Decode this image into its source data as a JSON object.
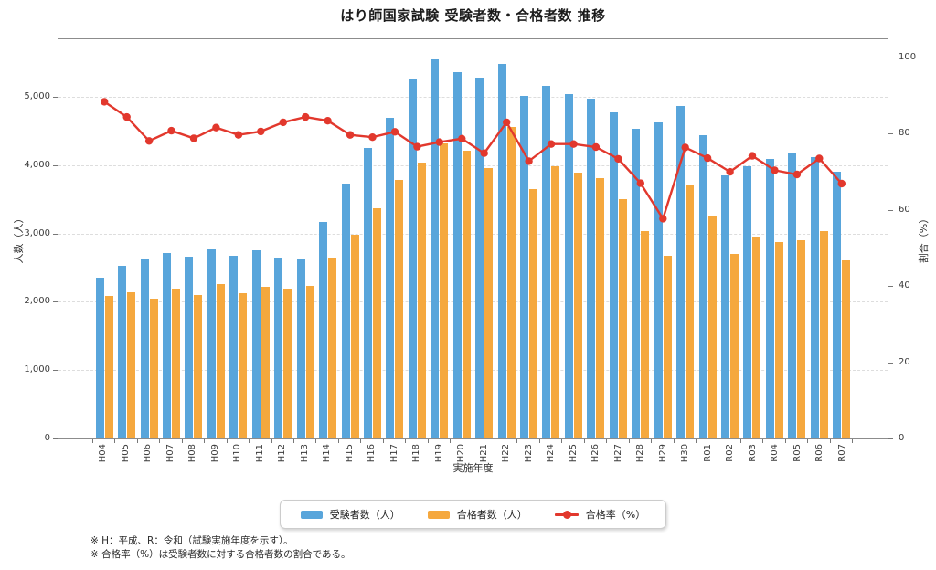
{
  "title": "はり師国家試験 受験者数・合格者数 推移",
  "chart_data": {
    "type": "bar+line combo",
    "categories": [
      "H04",
      "H05",
      "H06",
      "H07",
      "H08",
      "H09",
      "H10",
      "H11",
      "H12",
      "H13",
      "H14",
      "H15",
      "H16",
      "H17",
      "H18",
      "H19",
      "H20",
      "H21",
      "H22",
      "H23",
      "H24",
      "H25",
      "H26",
      "H27",
      "H28",
      "H29",
      "H30",
      "R01",
      "R02",
      "R03",
      "R04",
      "R05",
      "R06",
      "R07"
    ],
    "series": [
      {
        "name": "受験者数（人）",
        "type": "bar",
        "axis": "left",
        "color": "#58A5DB",
        "values": [
          2355,
          2529,
          2619,
          2712,
          2657,
          2767,
          2667,
          2755,
          2648,
          2638,
          3173,
          3735,
          4255,
          4694,
          5268,
          5546,
          5354,
          5283,
          5483,
          5015,
          5157,
          5036,
          4976,
          4775,
          4527,
          4622,
          4861,
          4431,
          3853,
          3982,
          4084,
          4176,
          4120,
          3900
        ]
      },
      {
        "name": "合格者数（人）",
        "type": "bar",
        "axis": "left",
        "color": "#F5A83E",
        "values": [
          2082,
          2134,
          2046,
          2190,
          2093,
          2257,
          2125,
          2221,
          2198,
          2226,
          2646,
          2975,
          3366,
          3779,
          4035,
          4316,
          4216,
          3957,
          4553,
          3651,
          3985,
          3892,
          3808,
          3504,
          3032,
          2667,
          3712,
          3263,
          2698,
          2956,
          2877,
          2894,
          3030,
          2610
        ]
      },
      {
        "name": "合格率（%）",
        "type": "line",
        "axis": "right",
        "color": "#E2382D",
        "values": [
          88.4,
          84.4,
          78.1,
          80.8,
          78.8,
          81.6,
          79.7,
          80.6,
          83.0,
          84.4,
          83.4,
          79.7,
          79.1,
          80.5,
          76.6,
          77.8,
          78.7,
          74.9,
          83.0,
          72.8,
          77.3,
          77.3,
          76.5,
          73.4,
          67.0,
          57.7,
          76.4,
          73.6,
          70.0,
          74.2,
          70.4,
          69.3,
          73.5,
          66.9
        ]
      }
    ],
    "xlabel": "実施年度",
    "ylabel_left": "人数（人）",
    "ylabel_right": "割合（%）",
    "ylim_left": [
      0,
      5840
    ],
    "ylim_right": [
      0,
      104.8
    ],
    "yticks_left": [
      {
        "v": 0,
        "label": "0"
      },
      {
        "v": 1000,
        "label": "1,000"
      },
      {
        "v": 2000,
        "label": "2,000"
      },
      {
        "v": 3000,
        "label": "3,000"
      },
      {
        "v": 4000,
        "label": "4,000"
      },
      {
        "v": 5000,
        "label": "5,000"
      }
    ],
    "yticks_right": [
      {
        "v": 0,
        "label": "0"
      },
      {
        "v": 20,
        "label": "20"
      },
      {
        "v": 40,
        "label": "40"
      },
      {
        "v": 60,
        "label": "60"
      },
      {
        "v": 80,
        "label": "80"
      },
      {
        "v": 100,
        "label": "100"
      }
    ],
    "grid": "horizontal dashed at left-axis ticks 1,000–5,000",
    "legend_position": "bottom center, boxed"
  },
  "footnotes": [
    "※ H：平成、R：令和（試験実施年度を示す）。",
    "※ 合格率（%）は受験者数に対する合格者数の割合である。"
  ]
}
